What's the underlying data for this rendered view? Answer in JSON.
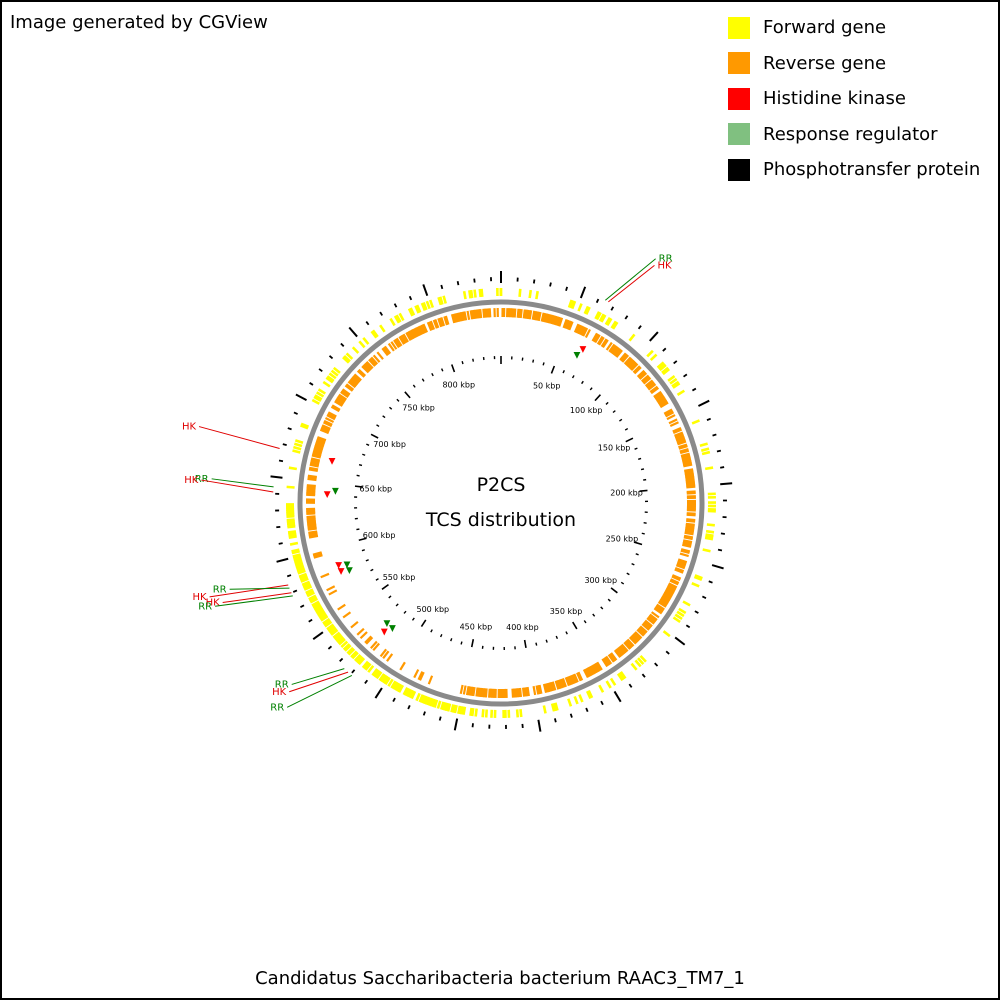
{
  "header": {
    "generated_by": "Image generated by CGView"
  },
  "legend": [
    {
      "label": "Forward gene",
      "color": "#ffff00"
    },
    {
      "label": "Reverse gene",
      "color": "#ff9900"
    },
    {
      "label": "Histidine kinase",
      "color": "#ff0000"
    },
    {
      "label": "Response regulator",
      "color": "#80c080"
    },
    {
      "label": "Phosphotransfer protein",
      "color": "#000000"
    }
  ],
  "map": {
    "center_title": "P2CS",
    "center_subtitle": "TCS distribution",
    "organism": "Candidatus Saccharibacteria bacterium RAAC3_TM7_1",
    "genome_kbp": 846,
    "kbp_labels": [
      "50 kbp",
      "100 kbp",
      "150 kbp",
      "200 kbp",
      "250 kbp",
      "300 kbp",
      "350 kbp",
      "400 kbp",
      "450 kbp",
      "500 kbp",
      "550 kbp",
      "600 kbp",
      "650 kbp",
      "700 kbp",
      "750 kbp",
      "800 kbp"
    ],
    "tcs_features": [
      {
        "type": "HK",
        "kbp": 66,
        "label_color": "#e00000",
        "marker_color": "#ff0000"
      },
      {
        "type": "RR",
        "kbp": 64,
        "label_color": "#008000",
        "marker_color": "#008000"
      },
      {
        "type": "HK",
        "kbp": 667,
        "label_color": "#e00000",
        "marker_color": "#ff0000"
      },
      {
        "type": "RR",
        "kbp": 644,
        "label_color": "#008000",
        "marker_color": "#008000"
      },
      {
        "type": "HK",
        "kbp": 641,
        "label_color": "#e00000",
        "marker_color": "#ff0000"
      },
      {
        "type": "HK",
        "kbp": 585,
        "label_color": "#e00000",
        "marker_color": "#ff0000"
      },
      {
        "type": "RR",
        "kbp": 583,
        "label_color": "#008000",
        "marker_color": "#008000"
      },
      {
        "type": "HK",
        "kbp": 580,
        "label_color": "#e00000",
        "marker_color": "#ff0000"
      },
      {
        "type": "RR",
        "kbp": 578,
        "label_color": "#008000",
        "marker_color": "#008000"
      },
      {
        "type": "RR",
        "kbp": 525,
        "label_color": "#008000",
        "marker_color": "#008000"
      },
      {
        "type": "HK",
        "kbp": 522,
        "label_color": "#e00000",
        "marker_color": "#ff0000"
      },
      {
        "type": "RR",
        "kbp": 519,
        "label_color": "#008000",
        "marker_color": "#008000"
      }
    ]
  }
}
